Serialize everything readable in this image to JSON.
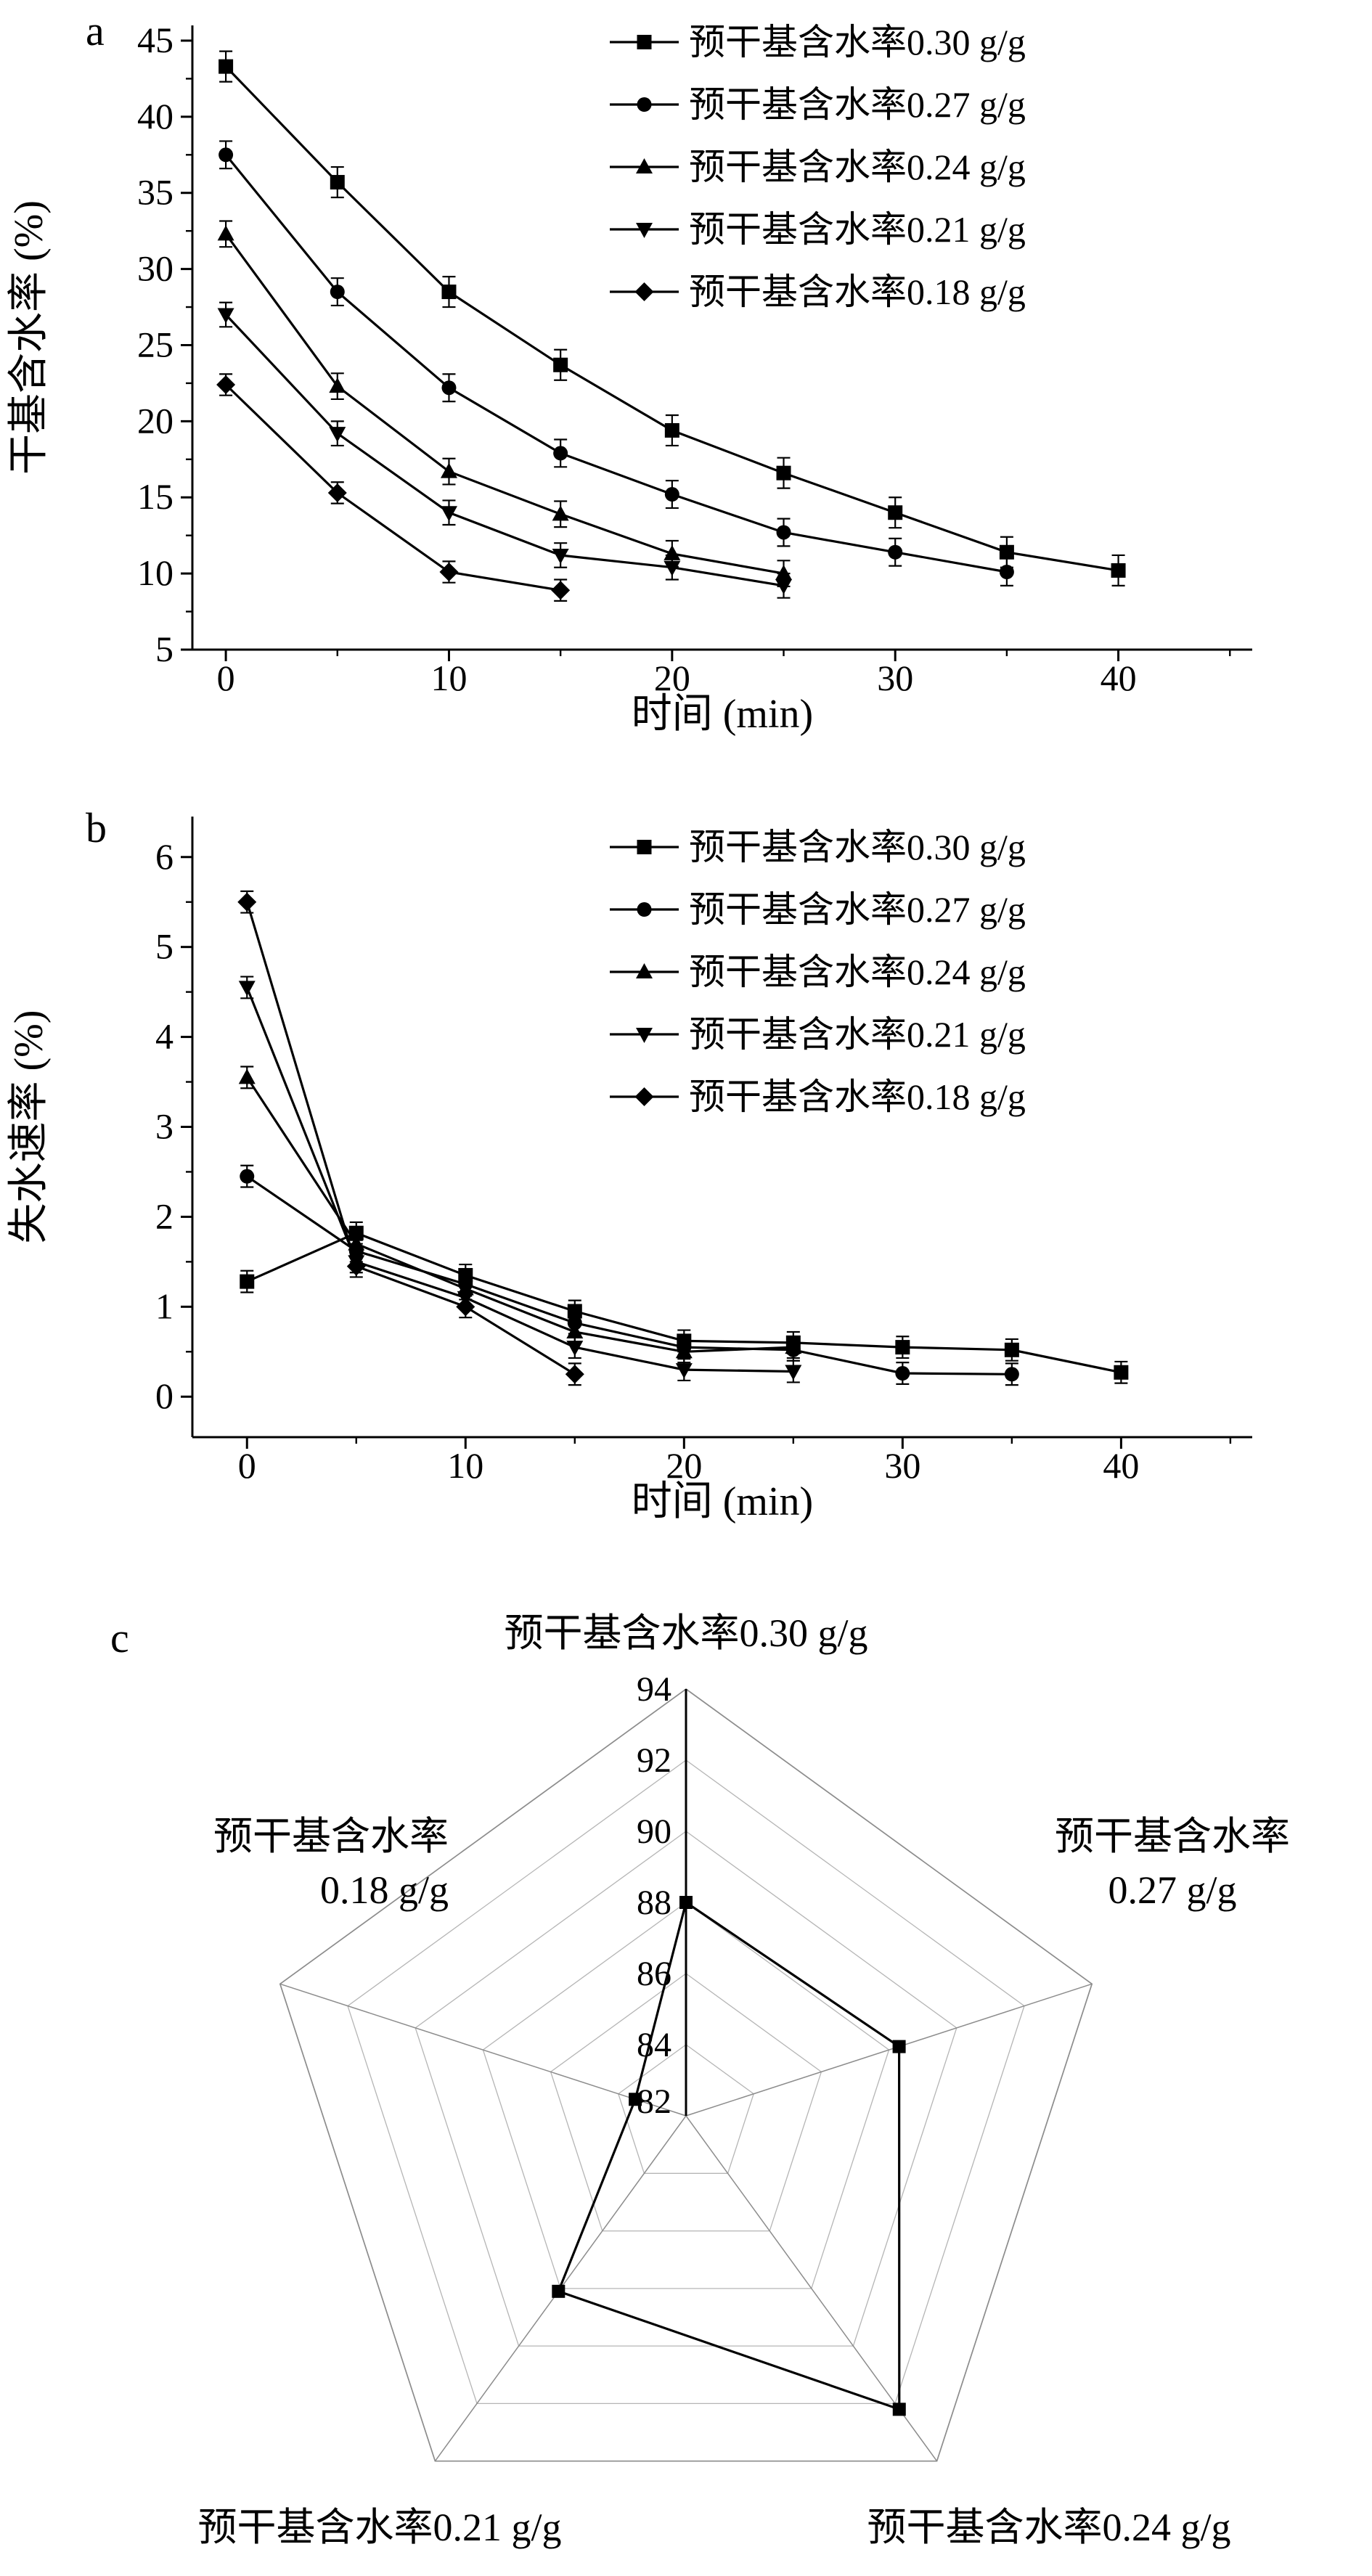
{
  "figure": {
    "panel_labels": {
      "a": "a",
      "b": "b",
      "c": "c"
    }
  },
  "chart_data": [
    {
      "type": "line",
      "panel": "a",
      "xlabel": "时间 (min)",
      "ylabel": "干基含水率 (%)",
      "xlim": [
        -1.5,
        46
      ],
      "ylim": [
        5,
        46
      ],
      "xticks": [
        0,
        10,
        20,
        30,
        40
      ],
      "xminor": [
        5,
        15,
        25,
        35,
        45
      ],
      "yticks": [
        5,
        10,
        15,
        20,
        25,
        30,
        35,
        40,
        45
      ],
      "yminor": [
        7.5,
        12.5,
        17.5,
        22.5,
        27.5,
        32.5,
        37.5,
        42.5
      ],
      "legend_position": "top-right",
      "grid": false,
      "series": [
        {
          "name": "预干基含水率0.30 g/g",
          "marker": "square",
          "x": [
            0,
            5,
            10,
            15,
            20,
            25,
            30,
            35,
            40
          ],
          "y": [
            43.3,
            35.7,
            28.5,
            23.7,
            19.4,
            16.6,
            14.0,
            11.4,
            10.2
          ],
          "yerr": 1.0
        },
        {
          "name": "预干基含水率0.27 g/g",
          "marker": "circle",
          "x": [
            0,
            5,
            10,
            15,
            20,
            25,
            30,
            35
          ],
          "y": [
            37.5,
            28.5,
            22.2,
            17.9,
            15.2,
            12.7,
            11.4,
            10.1
          ],
          "yerr": 0.9
        },
        {
          "name": "预干基含水率0.24 g/g",
          "marker": "triangle-up",
          "x": [
            0,
            5,
            10,
            15,
            20,
            25
          ],
          "y": [
            32.3,
            22.3,
            16.7,
            13.9,
            11.3,
            10.0
          ],
          "yerr": 0.85
        },
        {
          "name": "预干基含水率0.21 g/g",
          "marker": "triangle-down",
          "x": [
            0,
            5,
            10,
            15,
            20,
            25
          ],
          "y": [
            27.0,
            19.2,
            14.0,
            11.2,
            10.4,
            9.2
          ],
          "yerr": 0.8
        },
        {
          "name": "预干基含水率0.18 g/g",
          "marker": "diamond",
          "x": [
            0,
            5,
            10,
            15
          ],
          "y": [
            22.4,
            15.3,
            10.1,
            8.9
          ],
          "yerr": 0.7
        }
      ]
    },
    {
      "type": "line",
      "panel": "b",
      "xlabel": "时间 (min)",
      "ylabel": "失水速率 (%)",
      "xlim": [
        -2.5,
        46
      ],
      "ylim": [
        -0.45,
        6.45
      ],
      "xticks": [
        0,
        10,
        20,
        30,
        40
      ],
      "xminor": [
        5,
        15,
        25,
        35,
        45
      ],
      "yticks": [
        0,
        1,
        2,
        3,
        4,
        5,
        6
      ],
      "yminor": [
        0.5,
        1.5,
        2.5,
        3.5,
        4.5,
        5.5
      ],
      "legend_position": "top-right",
      "grid": false,
      "series": [
        {
          "name": "预干基含水率0.30 g/g",
          "marker": "square",
          "x": [
            0,
            5,
            10,
            15,
            20,
            25,
            30,
            35,
            40
          ],
          "y": [
            1.28,
            1.82,
            1.35,
            0.95,
            0.62,
            0.6,
            0.55,
            0.52,
            0.27
          ],
          "yerr": 0.12
        },
        {
          "name": "预干基含水率0.27 g/g",
          "marker": "circle",
          "x": [
            0,
            5,
            10,
            15,
            20,
            25,
            30,
            35
          ],
          "y": [
            2.45,
            1.62,
            1.25,
            0.82,
            0.55,
            0.52,
            0.26,
            0.25
          ],
          "yerr": 0.12
        },
        {
          "name": "预干基含水率0.24 g/g",
          "marker": "triangle-up",
          "x": [
            0,
            5,
            10,
            15,
            20,
            25
          ],
          "y": [
            3.55,
            1.7,
            1.2,
            0.72,
            0.5,
            0.55
          ],
          "yerr": 0.12
        },
        {
          "name": "预干基含水率0.21 g/g",
          "marker": "triangle-down",
          "x": [
            0,
            5,
            10,
            15,
            20,
            25
          ],
          "y": [
            4.55,
            1.5,
            1.1,
            0.55,
            0.3,
            0.28
          ],
          "yerr": 0.12
        },
        {
          "name": "预干基含水率0.18 g/g",
          "marker": "diamond",
          "x": [
            0,
            5,
            10,
            15
          ],
          "y": [
            5.5,
            1.45,
            1.0,
            0.25
          ],
          "yerr": 0.12
        }
      ]
    },
    {
      "type": "radar",
      "panel": "c",
      "axes": [
        "预干基含水率0.30 g/g",
        "预干基含水率 0.27 g/g",
        "预干基含水率0.24 g/g",
        "预干基含水率0.21 g/g",
        "预干基含水率 0.18 g/g"
      ],
      "axis_label_lines": [
        [
          "预干基含水率0.30 g/g"
        ],
        [
          "预干基含水率",
          "0.27 g/g"
        ],
        [
          "预干基含水率0.24 g/g"
        ],
        [
          "预干基含水率0.21 g/g"
        ],
        [
          "预干基含水率",
          "0.18 g/g"
        ]
      ],
      "rmin": 82,
      "rmax": 94,
      "rticks": [
        82,
        84,
        86,
        88,
        90,
        92,
        94
      ],
      "values": [
        88.0,
        88.3,
        92.2,
        88.1,
        83.5
      ],
      "marker": "square"
    }
  ]
}
